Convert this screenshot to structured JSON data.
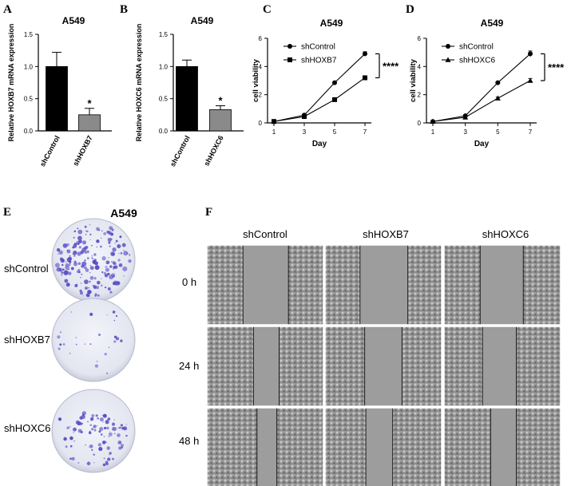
{
  "panels": {
    "A": "A",
    "B": "B",
    "C": "C",
    "D": "D",
    "E": "E",
    "F": "F"
  },
  "chart_data": [
    {
      "panel": "A",
      "type": "bar",
      "title": "A549",
      "ylabel": "Relative HOXB7 mRNA expression",
      "categories": [
        "shControl",
        "shHOXB7"
      ],
      "values": [
        1.0,
        0.25
      ],
      "errors": [
        0.22,
        0.1
      ],
      "colors": [
        "#000000",
        "#8a8a8a"
      ],
      "ylim": [
        0,
        1.5
      ],
      "yticks": [
        "0.0",
        "0.5",
        "1.0",
        "1.5"
      ],
      "significance": [
        {
          "category": "shHOXB7",
          "label": "*"
        }
      ]
    },
    {
      "panel": "B",
      "type": "bar",
      "title": "A549",
      "ylabel": "Relative HOXC6 mRNA expression",
      "categories": [
        "shControl",
        "shHOXC6"
      ],
      "values": [
        1.0,
        0.33
      ],
      "errors": [
        0.1,
        0.06
      ],
      "colors": [
        "#000000",
        "#8a8a8a"
      ],
      "ylim": [
        0,
        1.5
      ],
      "yticks": [
        "0.0",
        "0.5",
        "1.0",
        "1.5"
      ],
      "significance": [
        {
          "category": "shHOXC6",
          "label": "*"
        }
      ]
    },
    {
      "panel": "C",
      "type": "line",
      "title": "A549",
      "xlabel": "Day",
      "ylabel": "cell viability",
      "x": [
        1,
        3,
        5,
        7
      ],
      "xticks": [
        "1",
        "3",
        "5",
        "7"
      ],
      "ylim": [
        0,
        6
      ],
      "yticks": [
        "0",
        "2",
        "4",
        "6"
      ],
      "series": [
        {
          "name": "shControl",
          "marker": "circle",
          "values": [
            0.1,
            0.55,
            2.85,
            4.9
          ],
          "errors": [
            0.03,
            0.05,
            0.08,
            0.15
          ]
        },
        {
          "name": "shHOXB7",
          "marker": "square",
          "values": [
            0.1,
            0.45,
            1.65,
            3.2
          ],
          "errors": [
            0.03,
            0.05,
            0.06,
            0.08
          ]
        }
      ],
      "significance": "****"
    },
    {
      "panel": "D",
      "type": "line",
      "title": "A549",
      "xlabel": "Day",
      "ylabel": "cell viability",
      "x": [
        1,
        3,
        5,
        7
      ],
      "xticks": [
        "1",
        "3",
        "5",
        "7"
      ],
      "ylim": [
        0,
        6
      ],
      "yticks": [
        "0",
        "2",
        "4",
        "6"
      ],
      "series": [
        {
          "name": "shControl",
          "marker": "circle",
          "values": [
            0.1,
            0.5,
            2.85,
            4.9
          ],
          "errors": [
            0.03,
            0.05,
            0.08,
            0.2
          ]
        },
        {
          "name": "shHOXC6",
          "marker": "triangle",
          "values": [
            0.1,
            0.4,
            1.75,
            3.0
          ],
          "errors": [
            0.03,
            0.05,
            0.08,
            0.15
          ]
        }
      ],
      "significance": "****"
    }
  ],
  "colony": {
    "title": "A549",
    "rows": [
      "shControl",
      "shHOXB7",
      "shHOXC6"
    ]
  },
  "wound": {
    "columns": [
      "shControl",
      "shHOXB7",
      "shHOXC6"
    ],
    "rows": [
      "0 h",
      "24 h",
      "48 h"
    ]
  }
}
